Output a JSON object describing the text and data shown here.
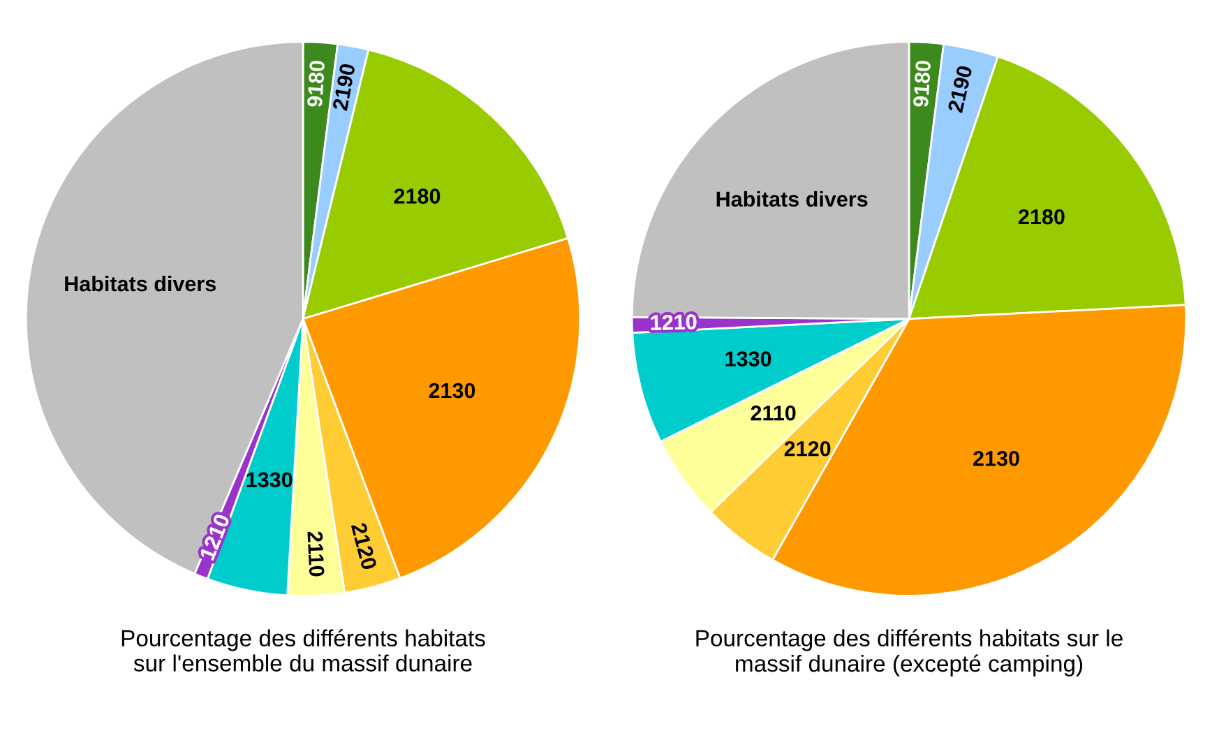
{
  "chart_data": [
    {
      "type": "pie",
      "title": "Pourcentage des différents habitats\nsur l'ensemble du massif dunaire",
      "categories": [
        "9180",
        "2190",
        "2180",
        "2130",
        "2120",
        "2110",
        "1330",
        "1210",
        "Habitats divers"
      ],
      "values": [
        2,
        1.8,
        16.5,
        24,
        3.3,
        3.3,
        4.7,
        0.8,
        43.6
      ],
      "colors": [
        "#3c8a1e",
        "#99ccff",
        "#99cc00",
        "#ff9900",
        "#ffcc33",
        "#ffff99",
        "#00cccc",
        "#9933cc",
        "#c0c0c0"
      ]
    },
    {
      "type": "pie",
      "title": "Pourcentage des différents habitats sur le\nmassif dunaire (excepté camping)",
      "categories": [
        "9180",
        "2190",
        "2180",
        "2130",
        "2120",
        "2110",
        "1330",
        "1210",
        "Habitats divers"
      ],
      "values": [
        2,
        3.2,
        19,
        34,
        4.5,
        5,
        6.5,
        0.9,
        24.9
      ],
      "colors": [
        "#3c8a1e",
        "#99ccff",
        "#99cc00",
        "#ff9900",
        "#ffcc33",
        "#ffff99",
        "#00cccc",
        "#9933cc",
        "#c0c0c0"
      ]
    }
  ]
}
